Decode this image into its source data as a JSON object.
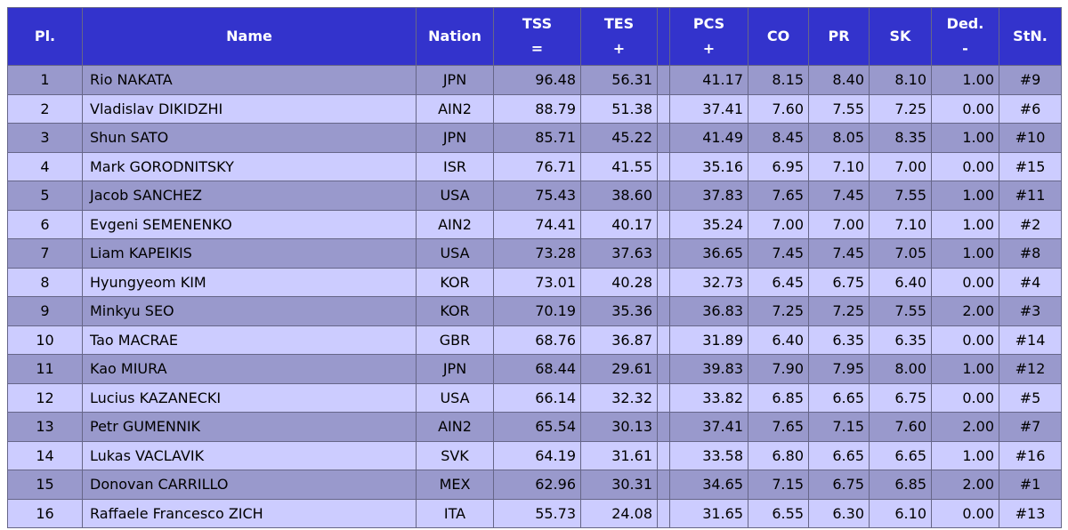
{
  "table": {
    "header": [
      [
        "Pl."
      ],
      [
        "Name"
      ],
      [
        "Nation"
      ],
      [
        "TSS",
        "="
      ],
      [
        "TES",
        "+"
      ],
      [
        "PCS",
        "+"
      ],
      [
        "CO"
      ],
      [
        "PR"
      ],
      [
        "SK"
      ],
      [
        "Ded.",
        "-"
      ],
      [
        "StN."
      ]
    ],
    "rows": [
      [
        "1",
        "Rio NAKATA",
        "JPN",
        "96.48",
        "56.31",
        "41.17",
        "8.15",
        "8.40",
        "8.10",
        "1.00",
        "#9"
      ],
      [
        "2",
        "Vladislav DIKIDZHI",
        "AIN2",
        "88.79",
        "51.38",
        "37.41",
        "7.60",
        "7.55",
        "7.25",
        "0.00",
        "#6"
      ],
      [
        "3",
        "Shun SATO",
        "JPN",
        "85.71",
        "45.22",
        "41.49",
        "8.45",
        "8.05",
        "8.35",
        "1.00",
        "#10"
      ],
      [
        "4",
        "Mark GORODNITSKY",
        "ISR",
        "76.71",
        "41.55",
        "35.16",
        "6.95",
        "7.10",
        "7.00",
        "0.00",
        "#15"
      ],
      [
        "5",
        "Jacob SANCHEZ",
        "USA",
        "75.43",
        "38.60",
        "37.83",
        "7.65",
        "7.45",
        "7.55",
        "1.00",
        "#11"
      ],
      [
        "6",
        "Evgeni SEMENENKO",
        "AIN2",
        "74.41",
        "40.17",
        "35.24",
        "7.00",
        "7.00",
        "7.10",
        "1.00",
        "#2"
      ],
      [
        "7",
        "Liam KAPEIKIS",
        "USA",
        "73.28",
        "37.63",
        "36.65",
        "7.45",
        "7.45",
        "7.05",
        "1.00",
        "#8"
      ],
      [
        "8",
        "Hyungyeom KIM",
        "KOR",
        "73.01",
        "40.28",
        "32.73",
        "6.45",
        "6.75",
        "6.40",
        "0.00",
        "#4"
      ],
      [
        "9",
        "Minkyu SEO",
        "KOR",
        "70.19",
        "35.36",
        "36.83",
        "7.25",
        "7.25",
        "7.55",
        "2.00",
        "#3"
      ],
      [
        "10",
        "Tao MACRAE",
        "GBR",
        "68.76",
        "36.87",
        "31.89",
        "6.40",
        "6.35",
        "6.35",
        "0.00",
        "#14"
      ],
      [
        "11",
        "Kao MIURA",
        "JPN",
        "68.44",
        "29.61",
        "39.83",
        "7.90",
        "7.95",
        "8.00",
        "1.00",
        "#12"
      ],
      [
        "12",
        "Lucius KAZANECKI",
        "USA",
        "66.14",
        "32.32",
        "33.82",
        "6.85",
        "6.65",
        "6.75",
        "0.00",
        "#5"
      ],
      [
        "13",
        "Petr GUMENNIK",
        "AIN2",
        "65.54",
        "30.13",
        "37.41",
        "7.65",
        "7.15",
        "7.60",
        "2.00",
        "#7"
      ],
      [
        "14",
        "Lukas VACLAVIK",
        "SVK",
        "64.19",
        "31.61",
        "33.58",
        "6.80",
        "6.65",
        "6.65",
        "1.00",
        "#16"
      ],
      [
        "15",
        "Donovan CARRILLO",
        "MEX",
        "62.96",
        "30.31",
        "34.65",
        "7.15",
        "6.75",
        "6.85",
        "2.00",
        "#1"
      ],
      [
        "16",
        "Raffaele Francesco ZICH",
        "ITA",
        "55.73",
        "24.08",
        "31.65",
        "6.55",
        "6.30",
        "6.10",
        "0.00",
        "#13"
      ]
    ]
  }
}
